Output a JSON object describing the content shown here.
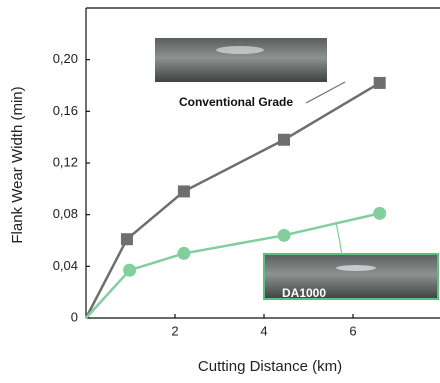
{
  "chart_data": {
    "type": "line",
    "xlabel": "Cutting Distance (km)",
    "ylabel": "Flank Wear Width (min)",
    "xlim": [
      0,
      8
    ],
    "ylim": [
      0,
      0.24
    ],
    "xticks": [
      2,
      4,
      6
    ],
    "yticks": [
      0,
      {
        "value": 0.04,
        "label": "0,04"
      },
      {
        "value": 0.08,
        "label": "0,08"
      },
      {
        "value": 0.12,
        "label": "0,12"
      },
      {
        "value": 0.16,
        "label": "0,16"
      },
      {
        "value": 0.2,
        "label": "0,20"
      }
    ],
    "series": [
      {
        "name": "Conventional Grade",
        "color": "#6e6e6e",
        "marker": "square",
        "x": [
          0,
          0.92,
          2.2,
          4.45,
          6.6
        ],
        "values": [
          0,
          0.061,
          0.098,
          0.138,
          0.182
        ]
      },
      {
        "name": "DA1000",
        "color": "#80cf9d",
        "marker": "circle",
        "x": [
          0,
          0.98,
          2.2,
          4.45,
          6.6
        ],
        "values": [
          0,
          0.037,
          0.05,
          0.064,
          0.081
        ]
      }
    ]
  }
}
